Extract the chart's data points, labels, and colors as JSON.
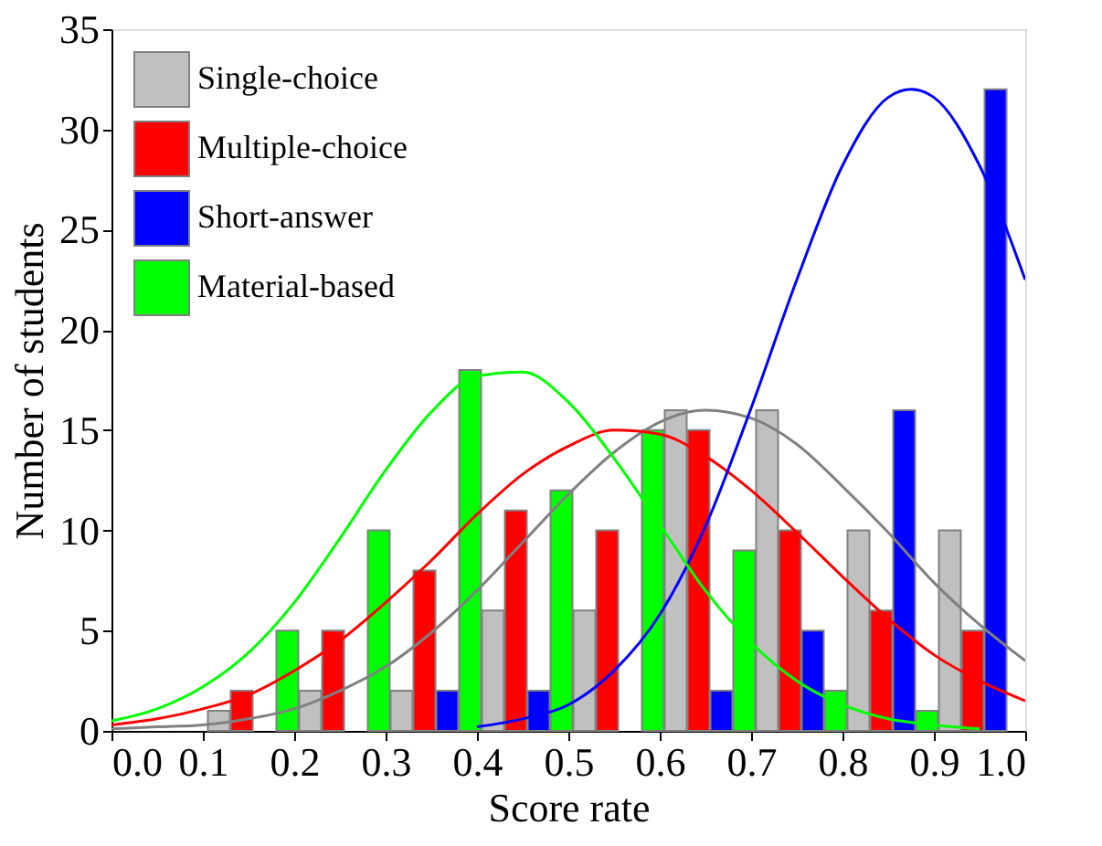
{
  "chart_data": {
    "type": "bar",
    "xlabel": "Score rate",
    "ylabel": "Number of students",
    "xlim": [
      0,
      1
    ],
    "xticks": [
      {
        "value": 0,
        "label": "0.0"
      },
      0.1,
      0.2,
      0.3,
      0.4,
      0.5,
      0.6,
      0.7,
      0.8,
      0.9,
      {
        "value": 1,
        "label": "1.0"
      }
    ],
    "ylim": [
      0,
      35
    ],
    "yticks": [
      0,
      5,
      10,
      15,
      20,
      25,
      30,
      35
    ],
    "grid": false,
    "legend": "top left",
    "series": [
      {
        "name": "Single-choice",
        "color": "#c0c0c0",
        "x": [
          0.1175,
          0.2175,
          0.3175,
          0.4175,
          0.5175,
          0.6175,
          0.7175,
          0.8175,
          0.9175
        ],
        "values": [
          1,
          2,
          2,
          6,
          6,
          16,
          16,
          10,
          10
        ]
      },
      {
        "name": "Multiple-choice",
        "color": "#ff0000",
        "x": [
          0.1425,
          0.2425,
          0.3425,
          0.4425,
          0.5425,
          0.6425,
          0.7425,
          0.8425,
          0.9425
        ],
        "values": [
          2,
          5,
          8,
          11,
          10,
          15,
          10,
          6,
          5
        ]
      },
      {
        "name": "Short-answer",
        "color": "#0000ff",
        "x": [
          0.3675,
          0.4675,
          0.6675,
          0.7675,
          0.8675,
          0.9675
        ],
        "values": [
          2,
          2,
          2,
          5,
          16,
          32
        ]
      },
      {
        "name": "Material-based",
        "color": "#00ff00",
        "x": [
          0.1925,
          0.2925,
          0.3925,
          0.4925,
          0.5925,
          0.6925,
          0.7925,
          0.8925
        ],
        "values": [
          5,
          10,
          18,
          12,
          15,
          9,
          2,
          1
        ]
      },
      {
        "type": "line",
        "color": "#808080",
        "marker": "none",
        "line_style": "solid",
        "x": [
          0,
          0.05,
          0.1,
          0.15,
          0.2,
          0.25,
          0.3,
          0.35,
          0.4,
          0.45,
          0.5,
          0.55,
          0.6,
          0.65,
          0.7,
          0.75,
          0.8,
          0.85,
          0.9,
          0.95,
          1.0
        ],
        "values": [
          0.1,
          0.2,
          0.3,
          0.6,
          1.1,
          2.0,
          3.2,
          4.9,
          7.0,
          9.4,
          11.8,
          13.9,
          15.4,
          16.0,
          15.6,
          14.3,
          12.2,
          9.9,
          7.4,
          5.3,
          3.5
        ]
      },
      {
        "type": "line",
        "color": "#ff0000",
        "marker": "none",
        "line_style": "solid",
        "x": [
          0,
          0.05,
          0.1,
          0.15,
          0.2,
          0.25,
          0.3,
          0.35,
          0.4,
          0.45,
          0.5,
          0.55,
          0.6,
          0.65,
          0.7,
          0.75,
          0.8,
          0.85,
          0.9,
          0.95,
          1.0
        ],
        "values": [
          0.3,
          0.6,
          1.1,
          1.8,
          3.0,
          4.5,
          6.4,
          8.5,
          10.8,
          12.8,
          14.2,
          15.0,
          14.8,
          13.7,
          12.0,
          9.9,
          7.7,
          5.6,
          3.8,
          2.5,
          1.5
        ]
      },
      {
        "type": "line",
        "color": "#0000ff",
        "marker": "none",
        "line_style": "solid",
        "x": [
          0.4,
          0.45,
          0.5,
          0.55,
          0.6,
          0.65,
          0.7,
          0.75,
          0.8,
          0.85,
          0.875,
          0.9,
          0.95,
          1.0
        ],
        "values": [
          0.2,
          0.6,
          1.3,
          3.0,
          5.8,
          10.2,
          16.1,
          22.5,
          28.2,
          31.6,
          32,
          31.6,
          28.2,
          22.5
        ]
      },
      {
        "type": "line",
        "color": "#00ff00",
        "marker": "none",
        "line_style": "solid",
        "x": [
          0,
          0.05,
          0.1,
          0.15,
          0.2,
          0.25,
          0.3,
          0.35,
          0.4,
          0.45,
          0.5,
          0.55,
          0.6,
          0.65,
          0.7,
          0.75,
          0.8,
          0.85,
          0.9,
          0.95
        ],
        "values": [
          0.5,
          1.1,
          2.2,
          3.9,
          6.4,
          9.6,
          13.0,
          15.9,
          17.7,
          17.9,
          16.4,
          13.6,
          10.3,
          7.0,
          4.4,
          2.5,
          1.3,
          0.6,
          0.3,
          0.1
        ]
      }
    ]
  }
}
